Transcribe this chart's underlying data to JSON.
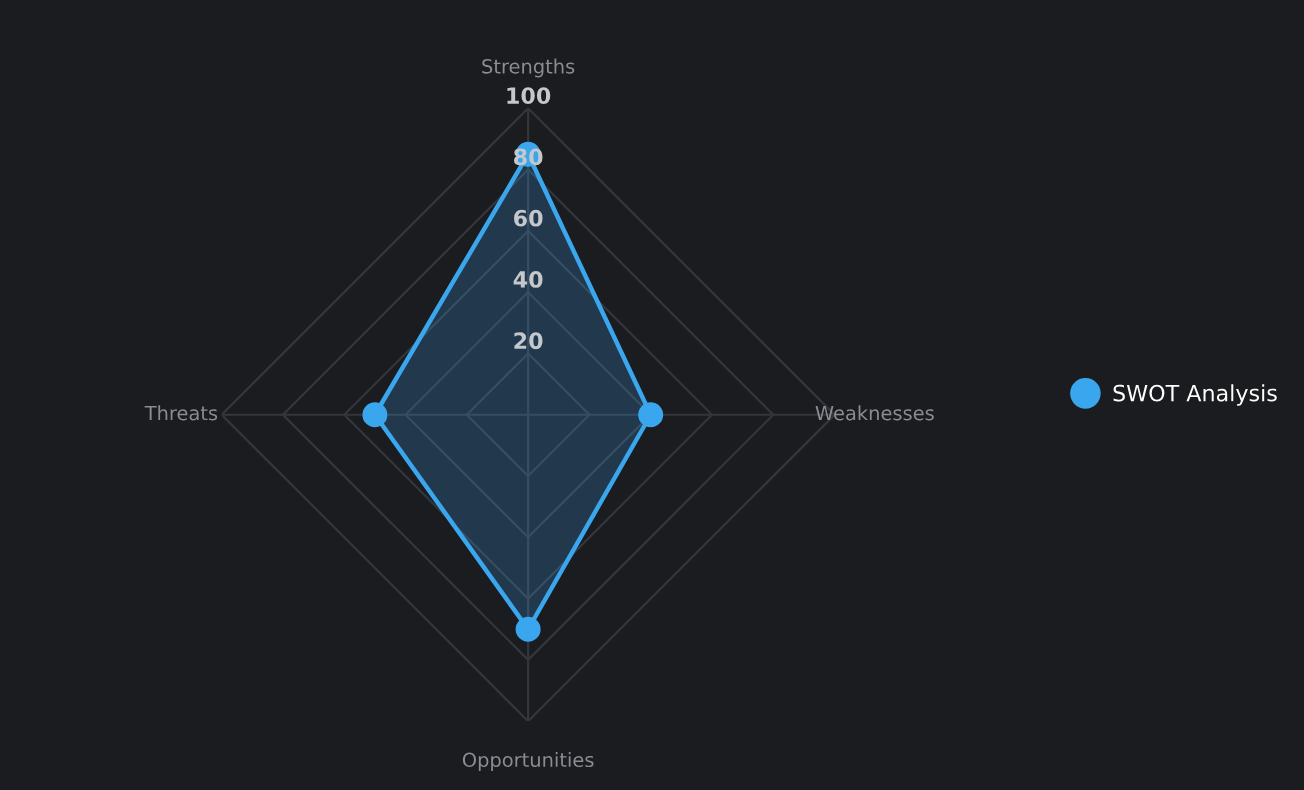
{
  "chart_data": {
    "type": "radar",
    "categories": [
      "Strengths",
      "Weaknesses",
      "Opportunities",
      "Threats"
    ],
    "series": [
      {
        "name": "SWOT Analysis",
        "color": "#3aa6ee",
        "values": [
          85,
          40,
          70,
          50
        ]
      }
    ],
    "ylim": [
      0,
      100
    ],
    "yticks": [
      20,
      40,
      60,
      80,
      100
    ],
    "grid": true,
    "legend": "right",
    "marker": "circle"
  }
}
